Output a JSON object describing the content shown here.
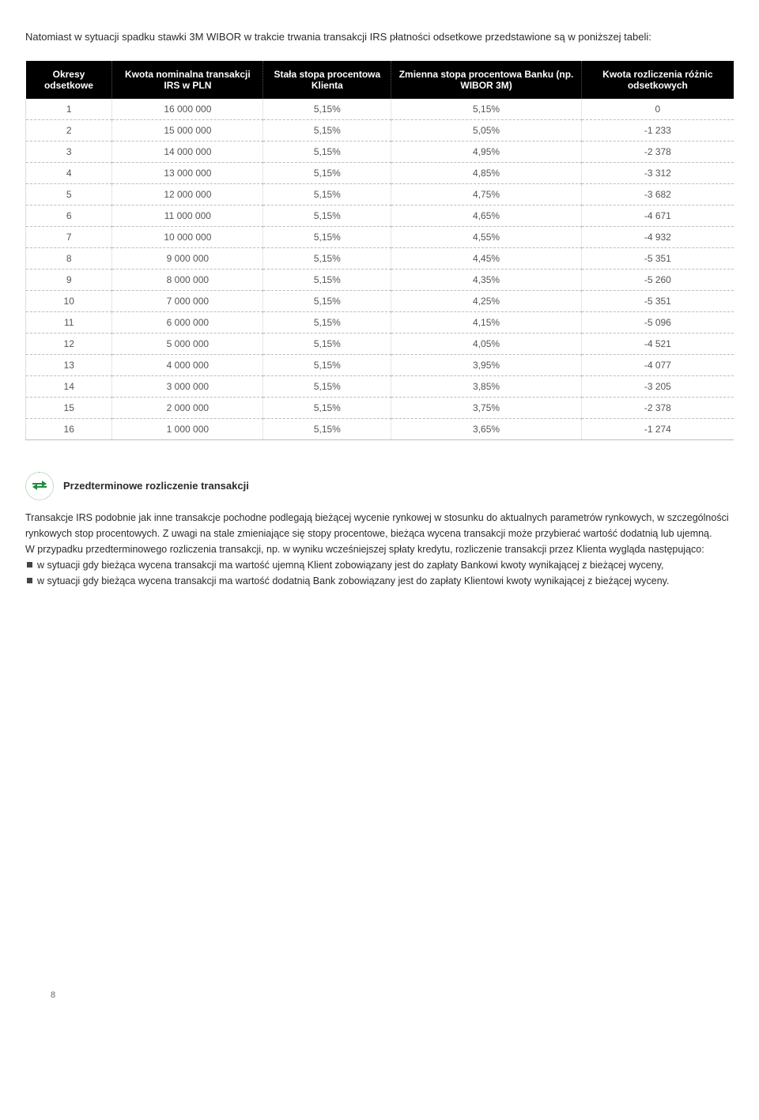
{
  "intro": "Natomiast w sytuacji spadku stawki 3M WIBOR w trakcie trwania transakcji IRS płatności odsetkowe przedstawione są w poniższej tabeli:",
  "table": {
    "columns": [
      "Okresy odsetkowe",
      "Kwota nominalna transakcji IRS w PLN",
      "Stała stopa procentowa Klienta",
      "Zmienna stopa procentowa Banku (np. WIBOR 3M)",
      "Kwota rozliczenia różnic odsetkowych"
    ],
    "rows": [
      [
        "1",
        "16 000 000",
        "5,15%",
        "5,15%",
        "0"
      ],
      [
        "2",
        "15 000 000",
        "5,15%",
        "5,05%",
        "-1 233"
      ],
      [
        "3",
        "14 000 000",
        "5,15%",
        "4,95%",
        "-2 378"
      ],
      [
        "4",
        "13 000 000",
        "5,15%",
        "4,85%",
        "-3 312"
      ],
      [
        "5",
        "12 000 000",
        "5,15%",
        "4,75%",
        "-3 682"
      ],
      [
        "6",
        "11 000 000",
        "5,15%",
        "4,65%",
        "-4 671"
      ],
      [
        "7",
        "10 000 000",
        "5,15%",
        "4,55%",
        "-4 932"
      ],
      [
        "8",
        "9 000 000",
        "5,15%",
        "4,45%",
        "-5 351"
      ],
      [
        "9",
        "8 000 000",
        "5,15%",
        "4,35%",
        "-5 260"
      ],
      [
        "10",
        "7 000 000",
        "5,15%",
        "4,25%",
        "-5 351"
      ],
      [
        "11",
        "6 000 000",
        "5,15%",
        "4,15%",
        "-5 096"
      ],
      [
        "12",
        "5 000 000",
        "5,15%",
        "4,05%",
        "-4 521"
      ],
      [
        "13",
        "4 000 000",
        "5,15%",
        "3,95%",
        "-4 077"
      ],
      [
        "14",
        "3 000 000",
        "5,15%",
        "3,85%",
        "-3 205"
      ],
      [
        "15",
        "2 000 000",
        "5,15%",
        "3,75%",
        "-2 378"
      ],
      [
        "16",
        "1 000 000",
        "5,15%",
        "3,65%",
        "-1 274"
      ]
    ],
    "header_bg": "#000000",
    "header_fg": "#ffffff",
    "row_border_color": "#bdbdbd"
  },
  "section": {
    "icon_name": "swap-icon",
    "icon_color": "#1e8c3a",
    "title": "Przedterminowe rozliczenie transakcji",
    "para1": "Transakcje IRS podobnie jak inne transakcje pochodne podlegają bieżącej wycenie rynkowej w stosunku do aktualnych parametrów rynkowych, w szczególności rynkowych stop procentowych. Z uwagi na stale zmieniające się stopy procentowe, bieżąca wycena transakcji może przybierać wartość dodatnią lub ujemną.",
    "para2": "W przypadku przedterminowego rozliczenia transakcji, np. w wyniku wcześniejszej spłaty kredytu, rozliczenie transakcji przez Klienta wygląda następująco:",
    "bullets": [
      "w sytuacji gdy bieżąca wycena transakcji ma wartość ujemną Klient zobowiązany jest do zapłaty Bankowi kwoty wynikającej z bieżącej wyceny,",
      "w sytuacji gdy bieżąca wycena transakcji ma wartość dodatnią Bank zobowiązany jest do zapłaty Klientowi kwoty wynikającej z bieżącej wyceny."
    ]
  },
  "page_number": "8"
}
